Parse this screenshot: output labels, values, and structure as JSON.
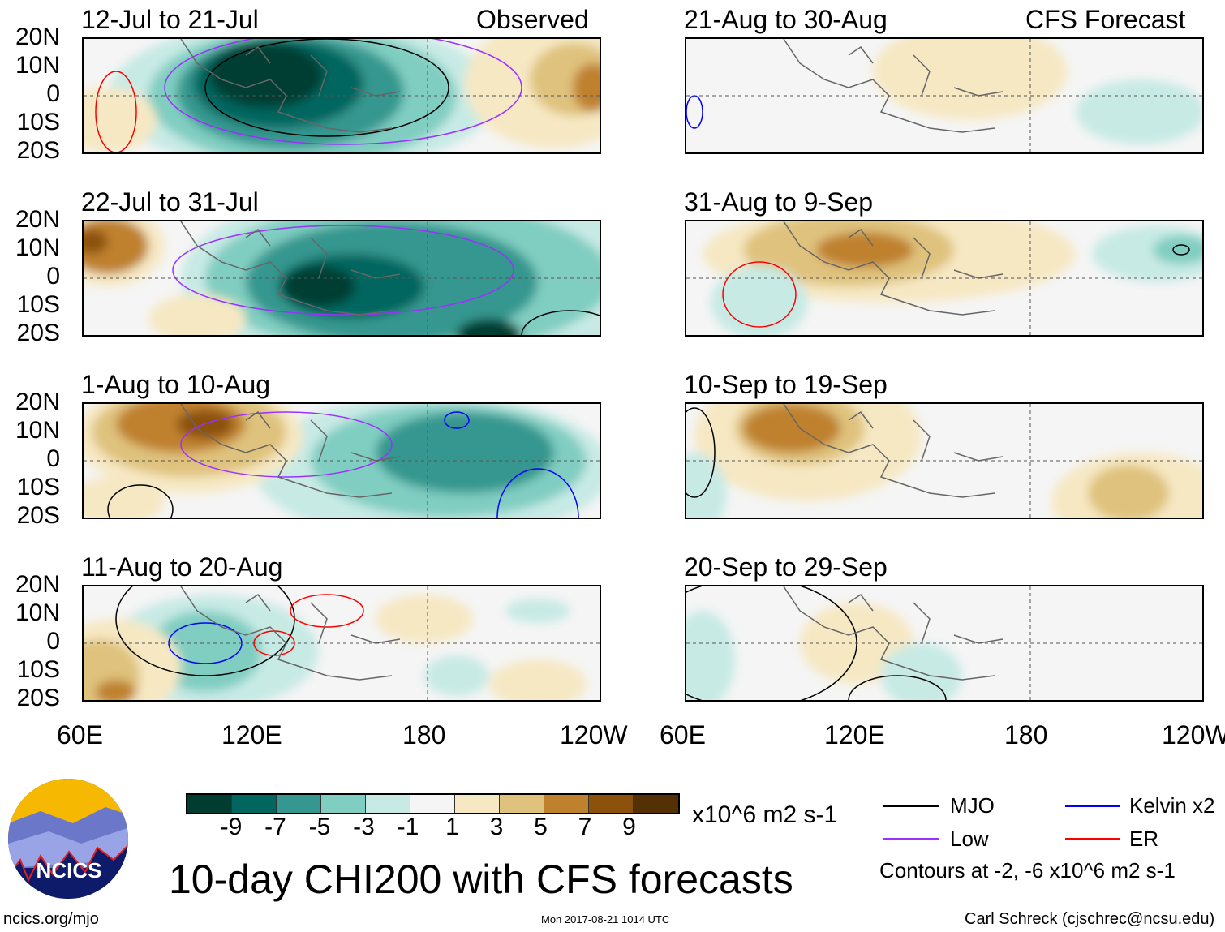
{
  "header": {
    "observed_label": "Observed",
    "forecast_label": "CFS Forecast"
  },
  "panels": {
    "left": [
      "12-Jul to 21-Jul",
      "22-Jul to 31-Jul",
      "1-Aug to 10-Aug",
      "11-Aug to 20-Aug"
    ],
    "right": [
      "21-Aug to 30-Aug",
      "31-Aug to 9-Sep",
      "10-Sep to 19-Sep",
      "20-Sep to 29-Sep"
    ]
  },
  "lat_labels": [
    "20N",
    "10N",
    "0",
    "10S",
    "20S"
  ],
  "lon_labels": [
    "60E",
    "120E",
    "180",
    "120W"
  ],
  "colorbar": {
    "colors": [
      "#003c30",
      "#01665e",
      "#35978f",
      "#80cdc1",
      "#c7eae5",
      "#f5f5f5",
      "#f6e8c3",
      "#dfc27d",
      "#bf812d",
      "#8c510a",
      "#543005"
    ],
    "labels": [
      "-9",
      "-7",
      "-5",
      "-3",
      "-1",
      "1",
      "3",
      "5",
      "7",
      "9"
    ],
    "units": "x10^6 m2 s-1"
  },
  "legend": {
    "items": [
      {
        "label": "MJO",
        "color": "#000000"
      },
      {
        "label": "Kelvin x2",
        "color": "#0000ff"
      },
      {
        "label": "Low",
        "color": "#9b30ff"
      },
      {
        "label": "ER",
        "color": "#ff0000"
      }
    ],
    "note": "Contours at -2, -6 x10^6 m2 s-1"
  },
  "title": "10-day CHI200 with CFS forecasts",
  "logo_text": "NCICS",
  "footer": {
    "url": "ncics.org/mjo",
    "timestamp": "Mon 2017-08-21 1014 UTC",
    "author": "Carl Schreck (cjschrec@ncsu.edu)"
  }
}
